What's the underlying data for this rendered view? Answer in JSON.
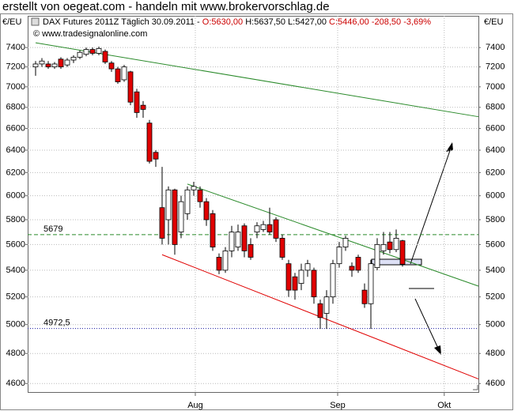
{
  "chart_data": {
    "type": "candlestick",
    "title": "erstellt von oegeat.com - handeln mit www.brokervorschlag.de",
    "header": [
      {
        "text": "DAX Futures 2011Z Täglich  30.09.2011 - ",
        "color": "#000000"
      },
      {
        "text": "O:5630,00 ",
        "color": "#cc0000"
      },
      {
        "text": "H:5637,50 L:5427,00 ",
        "color": "#000000"
      },
      {
        "text": "C:5446,00 -208,50 -3,69%",
        "color": "#cc0000"
      }
    ],
    "source": "© www.tradesignalonline.com",
    "y_label_left": "€/EU",
    "y_label_right": "€/EU",
    "up_color": "#ffffff",
    "down_color": "#e00000",
    "log_y": true,
    "grid": true,
    "ylim": [
      4540,
      7740
    ],
    "yticks": [
      4600,
      4800,
      5000,
      5200,
      5400,
      5600,
      5800,
      6000,
      6200,
      6400,
      6600,
      6800,
      7000,
      7200,
      7400
    ],
    "xlim": [
      -1.25,
      70
    ],
    "xticks": [
      {
        "value": 25.25,
        "label": "Aug"
      },
      {
        "value": 47.75,
        "label": "Sep"
      },
      {
        "value": 64.6,
        "label": "Okt"
      }
    ],
    "open": [
      7200,
      7230,
      7230,
      7200,
      7280,
      7220,
      7270,
      7300,
      7330,
      7380,
      7340,
      7360,
      7240,
      7180,
      7070,
      7150,
      6950,
      6820,
      6650,
      6380,
      5900,
      5800,
      6050,
      5700,
      5850,
      6050,
      6050,
      5950,
      5850,
      5500,
      5400,
      5550,
      5580,
      5750,
      5600,
      5700,
      5720,
      5760,
      5800,
      5650,
      5450,
      5350,
      5300,
      5400,
      5400,
      5150,
      5080,
      5200,
      5450,
      5580,
      5430,
      5500,
      5250,
      5150,
      5420,
      5550,
      5620,
      5560,
      5630
    ],
    "high": [
      7260,
      7290,
      7260,
      7250,
      7300,
      7290,
      7320,
      7370,
      7400,
      7400,
      7410,
      7380,
      7260,
      7200,
      7220,
      7160,
      6980,
      6860,
      6680,
      6400,
      6250,
      6080,
      6060,
      6000,
      6080,
      6120,
      6080,
      5980,
      5880,
      5530,
      5580,
      5750,
      5760,
      5770,
      5650,
      5780,
      5790,
      5900,
      5820,
      5680,
      5480,
      5380,
      5450,
      5480,
      5420,
      5180,
      5250,
      5480,
      5620,
      5670,
      5460,
      5520,
      5300,
      5480,
      5650,
      5700,
      5700,
      5720,
      5637.5
    ],
    "low": [
      7110,
      7200,
      7180,
      7180,
      7180,
      7200,
      7240,
      7280,
      7310,
      7320,
      7320,
      7230,
      7150,
      7030,
      7050,
      6820,
      6700,
      6700,
      6280,
      6250,
      5600,
      5600,
      5520,
      5650,
      5800,
      6000,
      5900,
      5750,
      5550,
      5370,
      5380,
      5500,
      5550,
      5500,
      5480,
      5650,
      5700,
      5680,
      5620,
      5480,
      5200,
      5180,
      5250,
      5350,
      5150,
      4970,
      4970,
      5150,
      5420,
      5550,
      5350,
      5380,
      5120,
      4970,
      5400,
      5520,
      5530,
      5540,
      5427
    ],
    "close": [
      7230,
      7260,
      7200,
      7230,
      7200,
      7270,
      7300,
      7350,
      7380,
      7340,
      7390,
      7250,
      7180,
      7050,
      7200,
      6850,
      6750,
      6780,
      6300,
      6320,
      5650,
      6050,
      5600,
      5950,
      6050,
      6080,
      5950,
      5800,
      5580,
      5400,
      5550,
      5700,
      5700,
      5550,
      5500,
      5750,
      5760,
      5700,
      5650,
      5500,
      5250,
      5250,
      5400,
      5450,
      5200,
      5050,
      5200,
      5450,
      5580,
      5650,
      5400,
      5400,
      5150,
      5450,
      5600,
      5600,
      5560,
      5650,
      5446
    ],
    "lines": [
      {
        "x": [
          0,
          70
        ],
        "y": [
          7450,
          6710
        ],
        "color": "#2a8a2a"
      },
      {
        "x": [
          24,
          70
        ],
        "y": [
          6100,
          5280
        ],
        "color": "#2a8a2a"
      },
      {
        "x": [
          20,
          70
        ],
        "y": [
          5520,
          4630
        ],
        "color": "#e00000"
      }
    ],
    "hlines": [
      {
        "value": 5679,
        "label": "5679",
        "color": "#2a8a2a",
        "style": "dashed"
      },
      {
        "value": 4972.5,
        "label": "4972,5",
        "color": "#1a1aa0",
        "style": "dotted"
      }
    ]
  }
}
